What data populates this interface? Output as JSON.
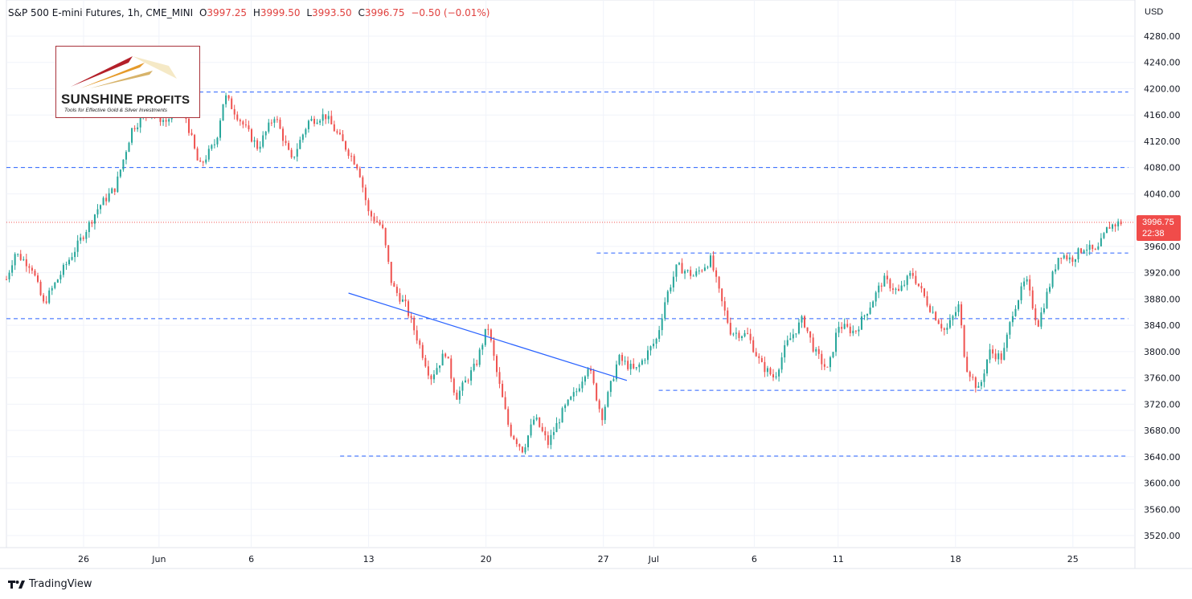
{
  "header": {
    "symbol": "S&P 500 E-mini Futures, 1h, CME_MINI",
    "open_label": "O",
    "open": "3997.25",
    "high_label": "H",
    "high": "3999.50",
    "low_label": "L",
    "low": "3993.50",
    "close_label": "C",
    "close": "3996.75",
    "change": "−0.50 (−0.01%)"
  },
  "axis": {
    "currency": "USD"
  },
  "price_tag": {
    "price": "3996.75",
    "countdown": "22:38"
  },
  "logo": {
    "brand_main": "SUNSHINE",
    "brand_second": "PROFITS",
    "tagline": "Tools for Effective Gold & Silver Investments"
  },
  "footer": {
    "brand": "TradingView"
  },
  "colors": {
    "up": "#26a69a",
    "down": "#ef5350",
    "level_line": "#2962ff",
    "trend_line": "#2962ff",
    "price_line": "#ef5350",
    "grid": "#f0f3fa"
  },
  "chart_data": {
    "type": "candlestick",
    "title": "S&P 500 E-mini Futures, 1h, CME_MINI",
    "ylim": [
      3500,
      4300
    ],
    "y_ticks": [
      3520,
      3560,
      3600,
      3640,
      3680,
      3720,
      3760,
      3800,
      3840,
      3880,
      3920,
      3960,
      4000,
      4040,
      4080,
      4120,
      4160,
      4200,
      4240,
      4280
    ],
    "y_tick_labels": [
      "3520.00",
      "3560.00",
      "3600.00",
      "3640.00",
      "3680.00",
      "3720.00",
      "3760.00",
      "3800.00",
      "3840.00",
      "3880.00",
      "3920.00",
      "3960.00",
      "4000.00",
      "4040.00",
      "4080.00",
      "4120.00",
      "4160.00",
      "4200.00",
      "4240.00",
      "4280.00"
    ],
    "x_ticks": [
      "26",
      "Jun",
      "6",
      "13",
      "20",
      "27",
      "Jul",
      "6",
      "11",
      "18",
      "25"
    ],
    "x_tick_days": [
      4.6,
      9.1,
      14.6,
      21.6,
      28.6,
      35.6,
      38.6,
      44.6,
      49.6,
      56.6,
      63.6
    ],
    "grid": true,
    "last_price": 3996.75,
    "price_path": [
      [
        0,
        3910
      ],
      [
        0.5,
        3950
      ],
      [
        1.5,
        3930
      ],
      [
        2.2,
        3872
      ],
      [
        3.5,
        3930
      ],
      [
        4.2,
        3960
      ],
      [
        5.5,
        4020
      ],
      [
        6.5,
        4050
      ],
      [
        7.5,
        4140
      ],
      [
        8.5,
        4165
      ],
      [
        9.5,
        4150
      ],
      [
        10.5,
        4175
      ],
      [
        11.5,
        4080
      ],
      [
        12.5,
        4120
      ],
      [
        13,
        4190
      ],
      [
        14,
        4150
      ],
      [
        15,
        4110
      ],
      [
        16,
        4160
      ],
      [
        17,
        4090
      ],
      [
        18,
        4150
      ],
      [
        19,
        4160
      ],
      [
        20,
        4120
      ],
      [
        21,
        4080
      ],
      [
        21.6,
        4010
      ],
      [
        22.4,
        3990
      ],
      [
        23,
        3900
      ],
      [
        23.8,
        3870
      ],
      [
        24.5,
        3820
      ],
      [
        25.3,
        3760
      ],
      [
        26.2,
        3800
      ],
      [
        26.8,
        3730
      ],
      [
        28,
        3780
      ],
      [
        28.7,
        3840
      ],
      [
        29.3,
        3760
      ],
      [
        30,
        3680
      ],
      [
        30.8,
        3650
      ],
      [
        31.5,
        3700
      ],
      [
        32.3,
        3660
      ],
      [
        33.2,
        3710
      ],
      [
        34,
        3740
      ],
      [
        34.7,
        3780
      ],
      [
        35.5,
        3700
      ],
      [
        36.5,
        3790
      ],
      [
        37.5,
        3770
      ],
      [
        38.8,
        3820
      ],
      [
        39.3,
        3880
      ],
      [
        40,
        3930
      ],
      [
        41,
        3915
      ],
      [
        42,
        3940
      ],
      [
        42.6,
        3880
      ],
      [
        43.2,
        3830
      ],
      [
        44.2,
        3825
      ],
      [
        45,
        3780
      ],
      [
        45.8,
        3760
      ],
      [
        46.5,
        3810
      ],
      [
        47.5,
        3850
      ],
      [
        48.2,
        3800
      ],
      [
        49,
        3770
      ],
      [
        49.6,
        3840
      ],
      [
        50.6,
        3830
      ],
      [
        51.5,
        3870
      ],
      [
        52.3,
        3910
      ],
      [
        53.2,
        3890
      ],
      [
        54,
        3920
      ],
      [
        55,
        3870
      ],
      [
        56,
        3830
      ],
      [
        56.8,
        3870
      ],
      [
        57.2,
        3780
      ],
      [
        58,
        3740
      ],
      [
        58.6,
        3800
      ],
      [
        59.4,
        3790
      ],
      [
        60,
        3860
      ],
      [
        60.8,
        3910
      ],
      [
        61.5,
        3840
      ],
      [
        62.2,
        3900
      ],
      [
        62.8,
        3950
      ],
      [
        63.5,
        3940
      ],
      [
        64.3,
        3960
      ],
      [
        65,
        3950
      ],
      [
        65.7,
        3990
      ],
      [
        66.5,
        3997
      ]
    ],
    "horizontal_levels": [
      {
        "price": 4195,
        "from_day": 11.5,
        "to_day": 66.9
      },
      {
        "price": 4080,
        "from_day": 0,
        "to_day": 66.9
      },
      {
        "price": 3950,
        "from_day": 35.2,
        "to_day": 66.9
      },
      {
        "price": 3850,
        "from_day": 0,
        "to_day": 66.9
      },
      {
        "price": 3741,
        "from_day": 38.9,
        "to_day": 66.9
      },
      {
        "price": 3641,
        "from_day": 19.9,
        "to_day": 66.9
      }
    ],
    "trend_line": {
      "from": [
        20.4,
        3889
      ],
      "to": [
        37,
        3756
      ]
    }
  }
}
